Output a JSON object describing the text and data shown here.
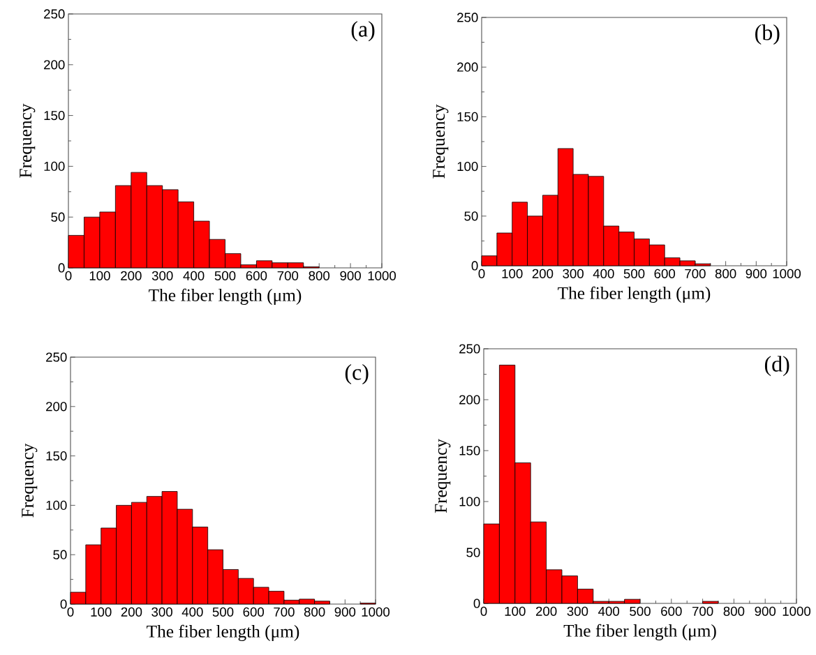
{
  "chart_data": [
    {
      "type": "histogram",
      "xlabel": "The fiber length (μm)",
      "ylabel": "Frequency",
      "annotations": [
        "(a)"
      ],
      "color": "#ff0000",
      "bins": [
        0,
        50,
        100,
        150,
        200,
        250,
        300,
        350,
        400,
        450,
        500,
        550,
        600,
        650,
        700,
        750,
        800,
        850,
        900,
        950,
        1000
      ],
      "values": [
        32,
        50,
        55,
        81,
        94,
        81,
        77,
        65,
        46,
        28,
        14,
        3,
        7,
        5,
        5,
        1,
        0,
        0,
        0,
        0
      ],
      "xlim": [
        0,
        1000
      ],
      "ylim": [
        0,
        250
      ],
      "xticks": [
        0,
        100,
        200,
        300,
        400,
        500,
        600,
        700,
        800,
        900,
        1000
      ],
      "yticks": [
        0,
        50,
        100,
        150,
        200,
        250
      ]
    },
    {
      "type": "histogram",
      "xlabel": "The fiber length (μm)",
      "ylabel": "Frequency",
      "annotations": [
        "(b)"
      ],
      "color": "#ff0000",
      "bins": [
        0,
        50,
        100,
        150,
        200,
        250,
        300,
        350,
        400,
        450,
        500,
        550,
        600,
        650,
        700,
        750,
        800,
        850,
        900,
        950,
        1000
      ],
      "values": [
        10,
        33,
        64,
        50,
        71,
        118,
        92,
        90,
        40,
        34,
        27,
        21,
        8,
        5,
        2,
        0,
        0,
        0,
        0,
        0
      ],
      "xlim": [
        0,
        1000
      ],
      "ylim": [
        0,
        250
      ],
      "xticks": [
        0,
        100,
        200,
        300,
        400,
        500,
        600,
        700,
        800,
        900,
        1000
      ],
      "yticks": [
        0,
        50,
        100,
        150,
        200,
        250
      ]
    },
    {
      "type": "histogram",
      "xlabel": "The fiber length (μm)",
      "ylabel": "Frequency",
      "annotations": [
        "(c)"
      ],
      "color": "#ff0000",
      "bins": [
        0,
        50,
        100,
        150,
        200,
        250,
        300,
        350,
        400,
        450,
        500,
        550,
        600,
        650,
        700,
        750,
        800,
        850,
        900,
        950,
        1000
      ],
      "values": [
        12,
        60,
        77,
        100,
        103,
        109,
        114,
        96,
        78,
        55,
        35,
        26,
        17,
        13,
        4,
        5,
        3,
        0,
        0,
        1
      ],
      "xlim": [
        0,
        1000
      ],
      "ylim": [
        0,
        250
      ],
      "xticks": [
        0,
        100,
        200,
        300,
        400,
        500,
        600,
        700,
        800,
        900,
        1000
      ],
      "yticks": [
        0,
        50,
        100,
        150,
        200,
        250
      ]
    },
    {
      "type": "histogram",
      "xlabel": "The fiber length (μm)",
      "ylabel": "Frequency",
      "annotations": [
        "(d)"
      ],
      "color": "#ff0000",
      "bins": [
        0,
        50,
        100,
        150,
        200,
        250,
        300,
        350,
        400,
        450,
        500,
        550,
        600,
        650,
        700,
        750,
        800,
        850,
        900,
        950,
        1000
      ],
      "values": [
        78,
        234,
        138,
        80,
        33,
        27,
        14,
        2,
        2,
        4,
        0,
        0,
        0,
        0,
        2,
        0,
        0,
        0,
        0,
        0
      ],
      "xlim": [
        0,
        1000
      ],
      "ylim": [
        0,
        250
      ],
      "xticks": [
        0,
        100,
        200,
        300,
        400,
        500,
        600,
        700,
        800,
        900,
        1000
      ],
      "yticks": [
        0,
        50,
        100,
        150,
        200,
        250
      ]
    }
  ]
}
